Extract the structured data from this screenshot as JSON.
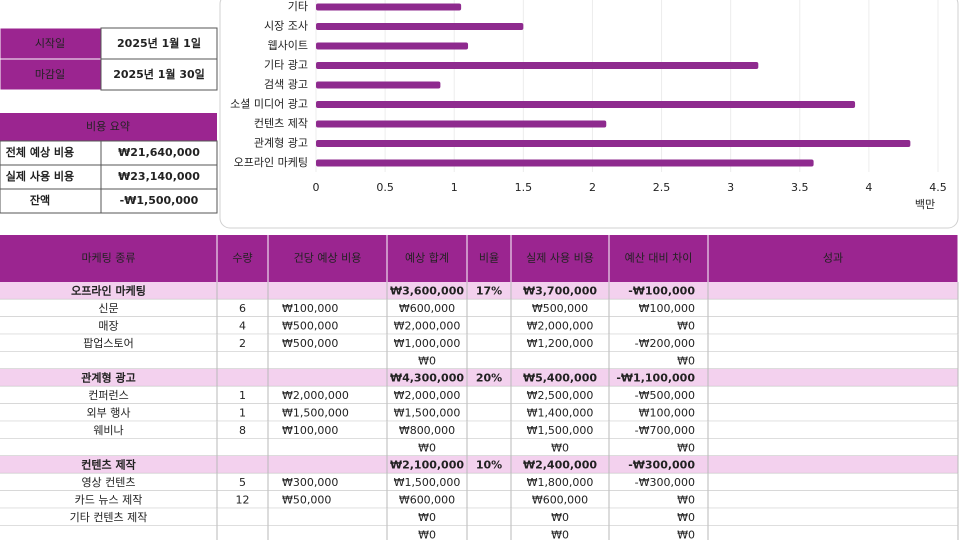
{
  "dates": {
    "rows": [
      {
        "label": "시작일",
        "value": "2025년 1월 1일"
      },
      {
        "label": "마감일",
        "value": "2025년 1월 30일"
      }
    ]
  },
  "summary": {
    "title": "비용 요약",
    "rows": [
      {
        "label": "전체 예상 비용",
        "value": "₩21,640,000"
      },
      {
        "label": "실제 사용 비용",
        "value": "₩23,140,000"
      },
      {
        "label": "잔액",
        "value": "-₩1,500,000"
      }
    ]
  },
  "chart_data": {
    "type": "bar",
    "orientation": "horizontal",
    "categories": [
      "기타",
      "시장 조사",
      "웹사이트",
      "기타 광고",
      "검색 광고",
      "소셜 미디어 광고",
      "컨텐츠 제작",
      "관계형 광고",
      "오프라인 마케팅"
    ],
    "values": [
      1.05,
      1.5,
      1.1,
      3.2,
      0.9,
      3.9,
      2.1,
      4.3,
      3.6
    ],
    "color": "#8e2a8e",
    "xlim": [
      0,
      4.5
    ],
    "xticks": [
      0,
      0.5,
      1,
      1.5,
      2,
      2.5,
      3,
      3.5,
      4,
      4.5
    ],
    "xlabel": "백만",
    "grid": true
  },
  "table": {
    "columns": [
      "마케팅 종류",
      "수량",
      "건당 예상 비용",
      "예상 합계",
      "비율",
      "실제 사용 비용",
      "예산 대비 차이",
      "성과"
    ],
    "rows": [
      {
        "highlight": true,
        "cells": [
          "오프라인 마케팅",
          null,
          null,
          "₩3,600,000",
          "17%",
          "₩3,700,000",
          "-₩100,000",
          null
        ]
      },
      {
        "cells": [
          "신문",
          "6",
          "₩100,000",
          "₩600,000",
          null,
          "₩500,000",
          "₩100,000",
          null
        ]
      },
      {
        "cells": [
          "매장",
          "4",
          "₩500,000",
          "₩2,000,000",
          null,
          "₩2,000,000",
          "₩0",
          null
        ]
      },
      {
        "cells": [
          "팝업스토어",
          "2",
          "₩500,000",
          "₩1,000,000",
          null,
          "₩1,200,000",
          "-₩200,000",
          null
        ]
      },
      {
        "cells": [
          null,
          null,
          null,
          "₩0",
          null,
          null,
          "₩0",
          null
        ]
      },
      {
        "highlight": true,
        "cells": [
          "관계형 광고",
          null,
          null,
          "₩4,300,000",
          "20%",
          "₩5,400,000",
          "-₩1,100,000",
          null
        ]
      },
      {
        "cells": [
          "컨퍼런스",
          "1",
          "₩2,000,000",
          "₩2,000,000",
          null,
          "₩2,500,000",
          "-₩500,000",
          null
        ]
      },
      {
        "cells": [
          "외부 행사",
          "1",
          "₩1,500,000",
          "₩1,500,000",
          null,
          "₩1,400,000",
          "₩100,000",
          null
        ]
      },
      {
        "cells": [
          "웨비나",
          "8",
          "₩100,000",
          "₩800,000",
          null,
          "₩1,500,000",
          "-₩700,000",
          null
        ]
      },
      {
        "cells": [
          null,
          null,
          null,
          "₩0",
          null,
          "₩0",
          "₩0",
          null
        ]
      },
      {
        "highlight": true,
        "cells": [
          "컨텐츠 제작",
          null,
          null,
          "₩2,100,000",
          "10%",
          "₩2,400,000",
          "-₩300,000",
          null
        ]
      },
      {
        "cells": [
          "영상 컨텐츠",
          "5",
          "₩300,000",
          "₩1,500,000",
          null,
          "₩1,800,000",
          "-₩300,000",
          null
        ]
      },
      {
        "cells": [
          "카드 뉴스 제작",
          "12",
          "₩50,000",
          "₩600,000",
          null,
          "₩600,000",
          "₩0",
          null
        ]
      },
      {
        "cells": [
          "기타 컨텐츠 제작",
          null,
          null,
          "₩0",
          null,
          "₩0",
          "₩0",
          null
        ]
      },
      {
        "cells": [
          null,
          null,
          null,
          "₩0",
          null,
          "₩0",
          "₩0",
          null
        ]
      }
    ]
  }
}
